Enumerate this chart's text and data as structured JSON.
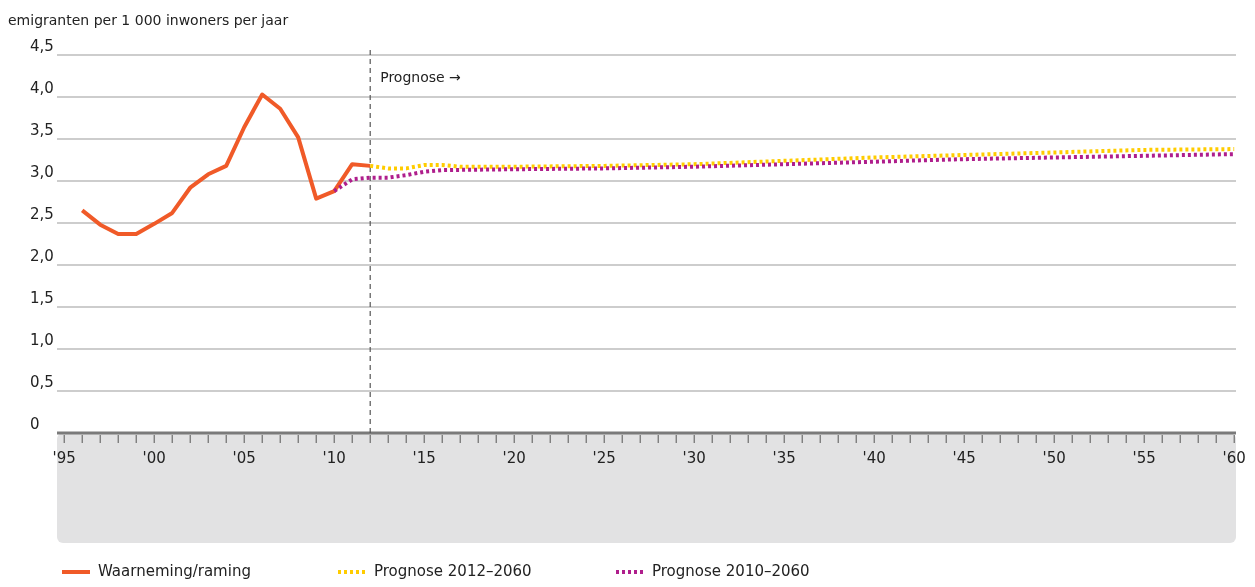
{
  "chart_data": {
    "type": "line",
    "ylabel": "emigranten per 1 000 inwoners per jaar",
    "xlim": [
      1994.6,
      2060.1
    ],
    "xticks": [
      {
        "value": 1995,
        "label": "'95"
      },
      {
        "value": 1996,
        "label": null
      },
      {
        "value": 1997,
        "label": null
      },
      {
        "value": 1998,
        "label": null
      },
      {
        "value": 1999,
        "label": null
      },
      {
        "value": 2000,
        "label": "'00"
      },
      {
        "value": 2001,
        "label": null
      },
      {
        "value": 2002,
        "label": null
      },
      {
        "value": 2003,
        "label": null
      },
      {
        "value": 2004,
        "label": null
      },
      {
        "value": 2005,
        "label": "'05"
      },
      {
        "value": 2006,
        "label": null
      },
      {
        "value": 2007,
        "label": null
      },
      {
        "value": 2008,
        "label": null
      },
      {
        "value": 2009,
        "label": null
      },
      {
        "value": 2010,
        "label": "'10"
      },
      {
        "value": 2011,
        "label": null
      },
      {
        "value": 2012,
        "label": null
      },
      {
        "value": 2013,
        "label": null
      },
      {
        "value": 2014,
        "label": null
      },
      {
        "value": 2015,
        "label": "'15"
      },
      {
        "value": 2016,
        "label": null
      },
      {
        "value": 2017,
        "label": null
      },
      {
        "value": 2018,
        "label": null
      },
      {
        "value": 2019,
        "label": null
      },
      {
        "value": 2020,
        "label": "'20"
      },
      {
        "value": 2021,
        "label": null
      },
      {
        "value": 2022,
        "label": null
      },
      {
        "value": 2023,
        "label": null
      },
      {
        "value": 2024,
        "label": null
      },
      {
        "value": 2025,
        "label": "'25"
      },
      {
        "value": 2026,
        "label": null
      },
      {
        "value": 2027,
        "label": null
      },
      {
        "value": 2028,
        "label": null
      },
      {
        "value": 2029,
        "label": null
      },
      {
        "value": 2030,
        "label": "'30"
      },
      {
        "value": 2031,
        "label": null
      },
      {
        "value": 2032,
        "label": null
      },
      {
        "value": 2033,
        "label": null
      },
      {
        "value": 2034,
        "label": null
      },
      {
        "value": 2035,
        "label": "'35"
      },
      {
        "value": 2036,
        "label": null
      },
      {
        "value": 2037,
        "label": null
      },
      {
        "value": 2038,
        "label": null
      },
      {
        "value": 2039,
        "label": null
      },
      {
        "value": 2040,
        "label": "'40"
      },
      {
        "value": 2041,
        "label": null
      },
      {
        "value": 2042,
        "label": null
      },
      {
        "value": 2043,
        "label": null
      },
      {
        "value": 2044,
        "label": null
      },
      {
        "value": 2045,
        "label": "'45"
      },
      {
        "value": 2046,
        "label": null
      },
      {
        "value": 2047,
        "label": null
      },
      {
        "value": 2048,
        "label": null
      },
      {
        "value": 2049,
        "label": null
      },
      {
        "value": 2050,
        "label": "'50"
      },
      {
        "value": 2051,
        "label": null
      },
      {
        "value": 2052,
        "label": null
      },
      {
        "value": 2053,
        "label": null
      },
      {
        "value": 2054,
        "label": null
      },
      {
        "value": 2055,
        "label": "'55"
      },
      {
        "value": 2056,
        "label": null
      },
      {
        "value": 2057,
        "label": null
      },
      {
        "value": 2058,
        "label": null
      },
      {
        "value": 2059,
        "label": null
      },
      {
        "value": 2060,
        "label": "'60"
      }
    ],
    "ylim": [
      0,
      4.5
    ],
    "yticks": [
      0,
      {
        "value": 0.5,
        "label": "0,5"
      },
      {
        "value": 1,
        "label": "1,0"
      },
      {
        "value": 1.5,
        "label": "1,5"
      },
      {
        "value": 2,
        "label": "2,0"
      },
      {
        "value": 2.5,
        "label": "2,5"
      },
      {
        "value": 3,
        "label": "3,0"
      },
      {
        "value": 3.5,
        "label": "3,5"
      },
      {
        "value": 4,
        "label": "4,0"
      },
      {
        "value": 4.5,
        "label": "4,5"
      }
    ],
    "grid": "y",
    "legend": "bottom",
    "series": [
      {
        "name": "Waarneming/raming",
        "color": "#f05a28",
        "line_style": "solid",
        "x": [
          1996,
          1997,
          1998,
          1999,
          2000,
          2001,
          2002,
          2003,
          2004,
          2005,
          2006,
          2007,
          2008,
          2009,
          2010,
          2011,
          2012
        ],
        "values": [
          2.65,
          2.48,
          2.37,
          2.37,
          2.49,
          2.62,
          2.92,
          3.08,
          3.18,
          3.64,
          4.03,
          3.86,
          3.52,
          2.79,
          2.88,
          3.2,
          3.18
        ]
      },
      {
        "name": "Prognose 2012–2060",
        "color": "#ffcc00",
        "line_style": "dotted",
        "x": [
          2012,
          2013,
          2014,
          2015,
          2016,
          2017,
          2020,
          2025,
          2030,
          2035,
          2040,
          2045,
          2050,
          2055,
          2060
        ],
        "values": [
          3.18,
          3.15,
          3.15,
          3.19,
          3.19,
          3.17,
          3.17,
          3.18,
          3.2,
          3.24,
          3.28,
          3.31,
          3.34,
          3.37,
          3.38
        ]
      },
      {
        "name": "Prognose 2010–2060",
        "color": "#af1e8c",
        "line_style": "dotted",
        "x": [
          2010,
          2011,
          2012,
          2013,
          2014,
          2015,
          2016,
          2020,
          2025,
          2030,
          2035,
          2040,
          2045,
          2050,
          2055,
          2060
        ],
        "values": [
          2.88,
          3.02,
          3.04,
          3.04,
          3.07,
          3.11,
          3.13,
          3.14,
          3.15,
          3.17,
          3.2,
          3.23,
          3.26,
          3.28,
          3.3,
          3.32
        ]
      }
    ],
    "ref_lines": [
      {
        "axis": "x",
        "value": 2012,
        "label": "Prognose →",
        "line_style": "dashed",
        "color": "#555555"
      }
    ]
  }
}
